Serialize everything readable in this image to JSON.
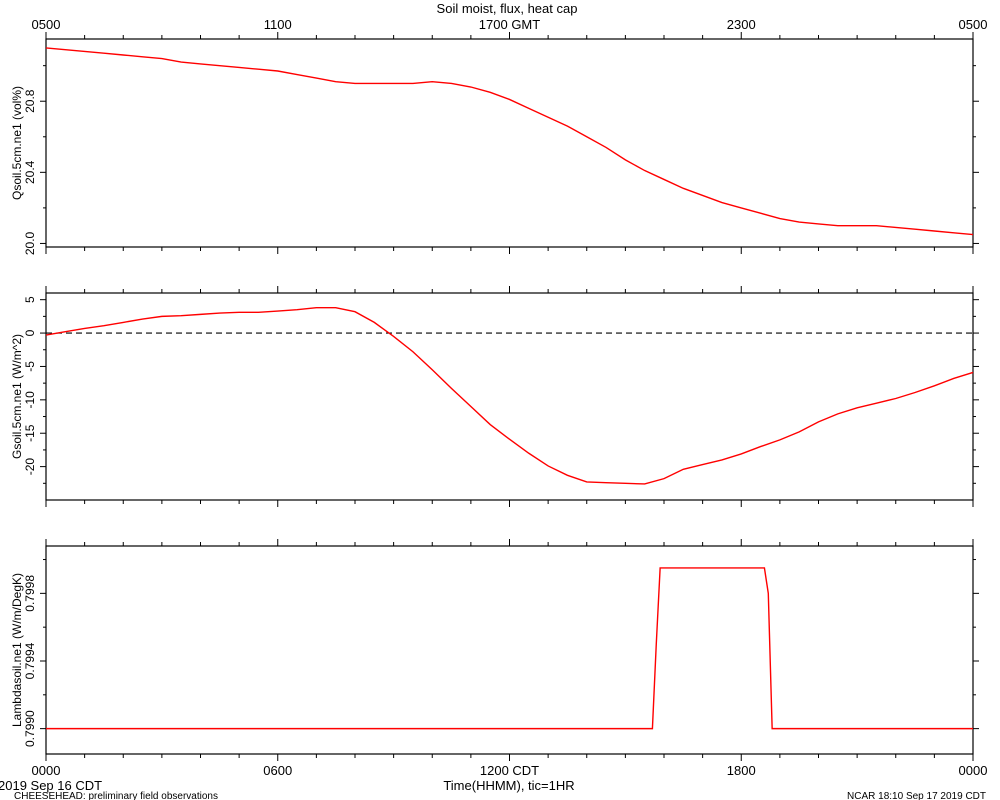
{
  "chart_data": {
    "type": "line",
    "title": "Soil moist, flux, heat cap",
    "top_axis": {
      "labels": [
        "0500",
        "1100",
        "1700 GMT",
        "2300",
        "0500"
      ],
      "hours": [
        0,
        6,
        12,
        18,
        24
      ]
    },
    "bottom_axis": {
      "labels": [
        "0000",
        "0600",
        "1200 CDT",
        "1800",
        "0000"
      ],
      "hours": [
        0,
        6,
        12,
        18,
        24
      ],
      "xlabel": "Time(HHMM), tic=1HR",
      "xlim": [
        0,
        24
      ],
      "minor_tick_step": 1
    },
    "panels": [
      {
        "ylabel": "Qsoil.5cm.ne1 (vol%)",
        "ylim": [
          19.98,
          21.15
        ],
        "yticks": [
          20.0,
          20.4,
          20.8
        ],
        "yticklabels": [
          "20.0",
          "20.4",
          "20.8"
        ],
        "yminor": [
          20.2,
          20.6,
          21.0
        ],
        "color": "#ff0000",
        "x": [
          0,
          0.5,
          1,
          1.5,
          2,
          2.5,
          3,
          3.5,
          4,
          4.5,
          5,
          5.5,
          6,
          6.5,
          7,
          7.5,
          8,
          8.5,
          9,
          9.5,
          10,
          10.5,
          11,
          11.5,
          12,
          12.5,
          13,
          13.5,
          14,
          14.5,
          15,
          15.5,
          16,
          16.5,
          17,
          17.5,
          18,
          18.5,
          19,
          19.5,
          20,
          20.5,
          21,
          21.5,
          22,
          22.5,
          23,
          23.5,
          24
        ],
        "y": [
          21.1,
          21.09,
          21.08,
          21.07,
          21.06,
          21.05,
          21.04,
          21.02,
          21.01,
          21.0,
          20.99,
          20.98,
          20.97,
          20.95,
          20.93,
          20.91,
          20.9,
          20.9,
          20.9,
          20.9,
          20.91,
          20.9,
          20.88,
          20.85,
          20.81,
          20.76,
          20.71,
          20.66,
          20.6,
          20.54,
          20.47,
          20.41,
          20.36,
          20.31,
          20.27,
          20.23,
          20.2,
          20.17,
          20.14,
          20.12,
          20.11,
          20.1,
          20.1,
          20.1,
          20.09,
          20.08,
          20.07,
          20.06,
          20.05
        ]
      },
      {
        "ylabel": "Gsoil.5cm.ne1 (W/m^2)",
        "ylim": [
          -25,
          6
        ],
        "yticks": [
          5,
          0,
          -5,
          -10,
          -15,
          -20
        ],
        "yticklabels": [
          "5",
          "0",
          "-5",
          "-10",
          "-15",
          "-20"
        ],
        "yminor": [
          2.5,
          -2.5,
          -7.5,
          -12.5,
          -17.5,
          -22.5
        ],
        "zero_line": 0,
        "color": "#ff0000",
        "x": [
          0,
          0.5,
          1,
          1.5,
          2,
          2.5,
          3,
          3.5,
          4,
          4.5,
          5,
          5.5,
          6,
          6.5,
          7,
          7.5,
          8,
          8.5,
          9,
          9.5,
          10,
          10.5,
          11,
          11.5,
          12,
          12.5,
          13,
          13.5,
          14,
          14.5,
          15,
          15.5,
          16,
          16.5,
          17,
          17.5,
          18,
          18.5,
          19,
          19.5,
          20,
          20.5,
          21,
          21.5,
          22,
          22.5,
          23,
          23.5,
          24
        ],
        "y": [
          -0.3,
          0.2,
          0.7,
          1.1,
          1.6,
          2.1,
          2.5,
          2.6,
          2.8,
          3.0,
          3.1,
          3.1,
          3.3,
          3.5,
          3.8,
          3.8,
          3.2,
          1.6,
          -0.5,
          -2.8,
          -5.5,
          -8.3,
          -11,
          -13.7,
          -15.9,
          -18,
          -19.9,
          -21.3,
          -22.3,
          -22.4,
          -22.5,
          -22.6,
          -21.8,
          -20.4,
          -19.7,
          -19.0,
          -18.1,
          -17.0,
          -16.0,
          -14.8,
          -13.3,
          -12.1,
          -11.2,
          -10.5,
          -9.8,
          -8.9,
          -7.9,
          -6.8,
          -5.9
        ]
      },
      {
        "ylabel": "Lambdasoil.ne1 (W/m/DegK)",
        "ylim": [
          0.79885,
          0.80008
        ],
        "yticks": [
          0.799,
          0.7994,
          0.7998
        ],
        "yticklabels": [
          "0.7990",
          "0.7994",
          "0.7998"
        ],
        "yminor": [
          0.7992,
          0.7996,
          0.8
        ],
        "color": "#ff0000",
        "x": [
          0,
          15.7,
          15.8,
          15.9,
          18.6,
          18.7,
          18.8,
          24
        ],
        "y": [
          0.799,
          0.799,
          0.7995,
          0.79995,
          0.79995,
          0.7998,
          0.799,
          0.799
        ]
      }
    ]
  },
  "footer": {
    "date_label": "2019 Sep 16 CDT",
    "project_label": "CHEESEHEAD: preliminary field observations",
    "stamp_label": "NCAR 18:10 Sep 17 2019 CDT"
  }
}
